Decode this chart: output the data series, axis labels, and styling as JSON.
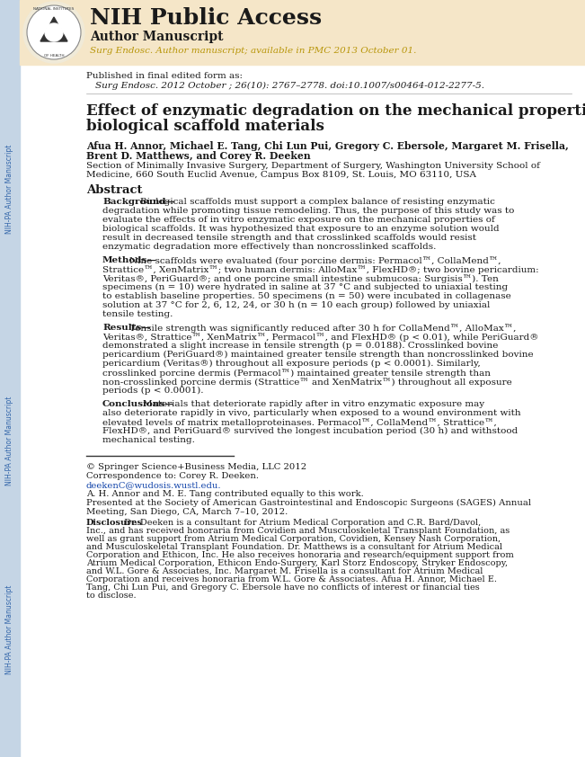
{
  "bg_color": "#ffffff",
  "left_sidebar_color": "#c5d5e5",
  "header_bg_color": "#f5e6c8",
  "header_title": "NIH Public Access",
  "header_subtitle": "Author Manuscript",
  "header_italic": "Surg Endosc. Author manuscript; available in PMC 2013 October 01.",
  "published_line1": "Published in final edited form as:",
  "published_line2": "Surg Endosc. 2012 October ; 26(10): 2767–2778. doi:10.1007/s00464-012-2277-5.",
  "paper_title_line1": "Effect of enzymatic degradation on the mechanical properties of",
  "paper_title_line2": "biological scaffold materials",
  "authors": "Afua H. Annor, Michael E. Tang, Chi Lun Pui, Gregory C. Ebersole, Margaret M. Frisella,",
  "authors2": "Brent D. Matthews, and Corey R. Deeken",
  "affiliation1": "Section of Minimally Invasive Surgery, Department of Surgery, Washington University School of",
  "affiliation2": "Medicine, 660 South Euclid Avenue, Campus Box 8109, St. Louis, MO 63110, USA",
  "abstract_title": "Abstract",
  "background_label": "Background—",
  "background_text": "Biological scaffolds must support a complex balance of resisting enzymatic degradation while promoting tissue remodeling. Thus, the purpose of this study was to evaluate the effects of in vitro enzymatic exposure on the mechanical properties of biological scaffolds. It was hypothesized that exposure to an enzyme solution would result in decreased tensile strength and that crosslinked scaffolds would resist enzymatic degradation more effectively than noncrosslinked scaffolds.",
  "methods_label": "Methods—",
  "methods_text": "Nine scaffolds were evaluated (four porcine dermis: Permacol™, CollaMend™, Strattice™, XenMatrix™; two human dermis: AlloMax™, FlexHD®; two bovine pericardium: Veritas®, PeriGuard®; and one porcine small intestine submucosa: Surgisis™). Ten specimens (n = 10) were hydrated in saline at 37 °C and subjected to uniaxial testing to establish baseline properties. 50 specimens (n = 50) were incubated in collagenase solution at 37 °C for 2, 6, 12, 24, or 30 h (n = 10 each group) followed by uniaxial tensile testing.",
  "results_label": "Results—",
  "results_text": "Tensile strength was significantly reduced after 30 h for CollaMend™, AlloMax™, Veritas®, Strattice™, XenMatrix™, Permacol™, and FlexHD® (p < 0.01), while PeriGuard® demonstrated a slight increase in tensile strength (p = 0.0188). Crosslinked bovine pericardium (PeriGuard®) maintained greater tensile strength than noncrosslinked bovine pericardium (Veritas®) throughout all exposure periods (p < 0.0001). Similarly, crosslinked porcine dermis (Permacol™) maintained greater tensile strength than non-crosslinked porcine dermis (Strattice™ and XenMatrix™) throughout all exposure periods (p < 0.0001).",
  "conclusions_label": "Conclusions—",
  "conclusions_text": "Materials that deteriorate rapidly after in vitro enzymatic exposure may also deteriorate rapidly in vivo, particularly when exposed to a wound environment with elevated levels of matrix metalloproteinases. Permacol™, CollaMend™, Strattice™, FlexHD®, and PeriGuard® survived the longest incubation period (30 h) and withstood mechanical testing.",
  "copyright": "© Springer Science+Business Media, LLC 2012",
  "correspondence": "Correspondence to: Corey R. Deeken.",
  "email": "deekenC@wudosis.wustl.edu.",
  "contrib": "A. H. Annor and M. E. Tang contributed equally to this work.",
  "presented": "Presented at the Society of American Gastrointestinal and Endoscopic Surgeons (SAGES) Annual Meeting, San Diego, CA, March 7–10, 2012.",
  "disclosures_label": "Disclosures",
  "disclosures_text": " Dr. Deeken is a consultant for Atrium Medical Corporation and C.R. Bard/Davol, Inc., and has received honoraria from Covidien and Musculoskeletal Transplant Foundation, as well as grant support from Atrium Medical Corporation, Covidien, Kensey Nash Corporation, and Musculoskeletal Transplant Foundation. Dr. Matthews is a consultant for Atrium Medical Corporation and Ethicon, Inc. He also receives honoraria and research/equipment support from Atrium Medical Corporation, Ethicon Endo-Surgery, Karl Storz Endoscopy, Stryker Endoscopy, and W.L. Gore & Associates, Inc. Margaret M. Frisella is a consultant for Atrium Medical Corporation and receives honoraria from W.L. Gore & Associates. Afua H. Annor, Michael E. Tang, Chi Lun Pui, and Gregory C. Ebersole have no conflicts of interest or financial ties to disclose.",
  "sidebar_text": "NIH-PA Author Manuscript",
  "text_color": "#1a1a1a",
  "sidebar_text_color": "#3366aa"
}
